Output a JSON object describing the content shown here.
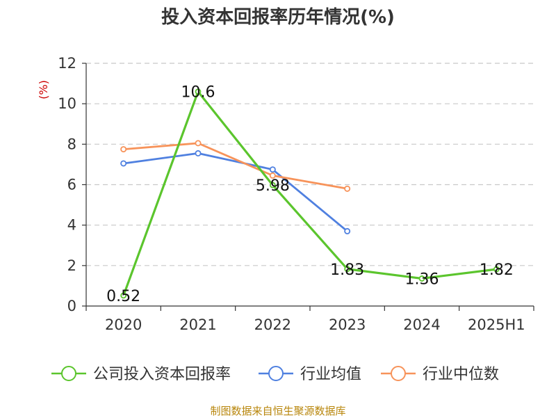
{
  "title": "投入资本回报率历年情况(%)",
  "source": "制图数据来自恒生聚源数据库",
  "colors": {
    "company": "#5bc52d",
    "industry_avg": "#4f80e0",
    "industry_median": "#f7935a",
    "unit": "#cc0000",
    "source": "#b8860b"
  },
  "chart_data": {
    "type": "line",
    "title": "投入资本回报率历年情况(%)",
    "ylabel": "(%)",
    "xlabel": "",
    "ylim": [
      0,
      12
    ],
    "yticks": [
      0,
      2,
      4,
      6,
      8,
      10,
      12
    ],
    "grid": true,
    "legend_position": "bottom",
    "categories": [
      "2020",
      "2021",
      "2022",
      "2023",
      "2024",
      "2025H1"
    ],
    "series": [
      {
        "name": "公司投入资本回报率",
        "color": "#5bc52d",
        "values": [
          0.52,
          10.6,
          5.98,
          1.83,
          1.36,
          1.82
        ],
        "labels": [
          "0.52",
          "10.6",
          "5.98",
          "1.83",
          "1.36",
          "1.82"
        ]
      },
      {
        "name": "行业均值",
        "color": "#4f80e0",
        "values": [
          7.05,
          7.55,
          6.75,
          3.7,
          null,
          null
        ]
      },
      {
        "name": "行业中位数",
        "color": "#f7935a",
        "values": [
          7.75,
          8.05,
          6.45,
          5.8,
          null,
          null
        ]
      }
    ]
  }
}
